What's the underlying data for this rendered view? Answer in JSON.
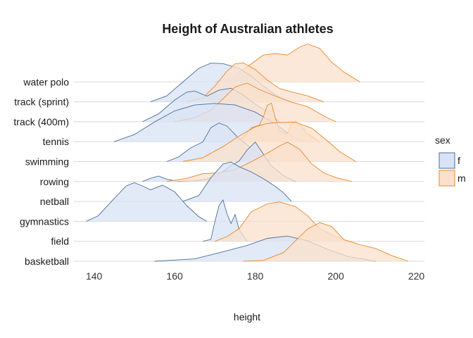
{
  "chart_data": {
    "type": "ridgeline",
    "title": "Height of Australian athletes",
    "xlabel": "height",
    "ylabel": "",
    "xlim": [
      135,
      222
    ],
    "x_ticks": [
      140,
      160,
      180,
      200,
      220
    ],
    "categories": [
      "basketball",
      "field",
      "gymnastics",
      "netball",
      "rowing",
      "swimming",
      "tennis",
      "track (400m)",
      "track (sprint)",
      "water polo"
    ],
    "legend": {
      "title": "sex",
      "position": "right",
      "entries": [
        {
          "label": "f",
          "fill": "#d8e3f6",
          "stroke": "#4b6f96"
        },
        {
          "label": "m",
          "fill": "#fbe0cb",
          "stroke": "#e8872a"
        }
      ]
    },
    "grid": "horizontal baselines only",
    "series": [
      {
        "name": "f",
        "densities": [
          {
            "category": "basketball",
            "points": [
              [
                155,
                0.0
              ],
              [
                165,
                0.06
              ],
              [
                172,
                0.24
              ],
              [
                178,
                0.4
              ],
              [
                183,
                0.58
              ],
              [
                188,
                0.64
              ],
              [
                193,
                0.52
              ],
              [
                198,
                0.3
              ],
              [
                203,
                0.12
              ],
              [
                210,
                0.0
              ]
            ]
          },
          {
            "category": "field",
            "points": [
              [
                167,
                0.0
              ],
              [
                169,
                0.05
              ],
              [
                170,
                0.5
              ],
              [
                171,
                0.9
              ],
              [
                172,
                1.05
              ],
              [
                173,
                0.7
              ],
              [
                174,
                0.45
              ],
              [
                175,
                0.68
              ],
              [
                176,
                0.3
              ],
              [
                178,
                0.0
              ]
            ]
          },
          {
            "category": "gymnastics",
            "points": [
              [
                138,
                0.0
              ],
              [
                141,
                0.14
              ],
              [
                145,
                0.58
              ],
              [
                148,
                0.9
              ],
              [
                150,
                0.98
              ],
              [
                152,
                0.9
              ],
              [
                154,
                0.8
              ],
              [
                157,
                0.92
              ],
              [
                160,
                0.75
              ],
              [
                163,
                0.4
              ],
              [
                166,
                0.12
              ],
              [
                168,
                0.0
              ]
            ]
          },
          {
            "category": "netball",
            "points": [
              [
                162,
                0.0
              ],
              [
                166,
                0.15
              ],
              [
                169,
                0.6
              ],
              [
                172,
                0.95
              ],
              [
                174,
                1.0
              ],
              [
                176,
                0.88
              ],
              [
                179,
                0.75
              ],
              [
                182,
                0.58
              ],
              [
                185,
                0.38
              ],
              [
                187,
                0.22
              ],
              [
                189,
                0.0
              ]
            ]
          },
          {
            "category": "rowing",
            "points": [
              [
                152,
                0.0
              ],
              [
                154,
                0.08
              ],
              [
                156,
                0.14
              ],
              [
                158,
                0.06
              ],
              [
                161,
                0.0
              ],
              [
                165,
                0.02
              ],
              [
                168,
                0.06
              ],
              [
                171,
                0.18
              ],
              [
                174,
                0.4
              ],
              [
                176,
                0.52
              ],
              [
                178,
                0.8
              ],
              [
                180,
                1.0
              ],
              [
                182,
                0.7
              ],
              [
                184,
                0.4
              ],
              [
                187,
                0.15
              ],
              [
                190,
                0.0
              ]
            ]
          },
          {
            "category": "swimming",
            "points": [
              [
                158,
                0.0
              ],
              [
                161,
                0.12
              ],
              [
                164,
                0.35
              ],
              [
                167,
                0.5
              ],
              [
                169,
                0.86
              ],
              [
                171,
                0.98
              ],
              [
                173,
                0.9
              ],
              [
                176,
                0.58
              ],
              [
                179,
                0.35
              ],
              [
                181,
                0.2
              ],
              [
                183,
                0.05
              ],
              [
                185,
                0.0
              ]
            ]
          },
          {
            "category": "tennis",
            "points": [
              [
                145,
                0.0
              ],
              [
                150,
                0.18
              ],
              [
                155,
                0.5
              ],
              [
                160,
                0.78
              ],
              [
                165,
                0.93
              ],
              [
                170,
                0.97
              ],
              [
                175,
                0.93
              ],
              [
                180,
                0.75
              ],
              [
                185,
                0.45
              ],
              [
                189,
                0.15
              ],
              [
                192,
                0.0
              ]
            ]
          },
          {
            "category": "track (400m)",
            "points": [
              [
                152,
                0.0
              ],
              [
                156,
                0.2
              ],
              [
                160,
                0.55
              ],
              [
                163,
                0.75
              ],
              [
                165,
                0.78
              ],
              [
                168,
                0.65
              ],
              [
                171,
                0.8
              ],
              [
                174,
                0.85
              ],
              [
                177,
                0.68
              ],
              [
                180,
                0.45
              ],
              [
                183,
                0.25
              ],
              [
                186,
                0.0
              ]
            ]
          },
          {
            "category": "track (sprint)",
            "points": [
              [
                154,
                0.0
              ],
              [
                158,
                0.15
              ],
              [
                162,
                0.5
              ],
              [
                166,
                0.85
              ],
              [
                169,
                0.98
              ],
              [
                172,
                0.97
              ],
              [
                176,
                0.85
              ],
              [
                179,
                0.65
              ],
              [
                182,
                0.4
              ],
              [
                185,
                0.18
              ],
              [
                188,
                0.0
              ]
            ]
          }
        ]
      },
      {
        "name": "m",
        "densities": [
          {
            "category": "basketball",
            "points": [
              [
                177,
                0.0
              ],
              [
                182,
                0.02
              ],
              [
                187,
                0.22
              ],
              [
                190,
                0.52
              ],
              [
                193,
                0.82
              ],
              [
                196,
                0.98
              ],
              [
                199,
                0.88
              ],
              [
                202,
                0.55
              ],
              [
                206,
                0.42
              ],
              [
                210,
                0.32
              ],
              [
                214,
                0.14
              ],
              [
                218,
                0.0
              ]
            ]
          },
          {
            "category": "field",
            "points": [
              [
                170,
                0.0
              ],
              [
                173,
                0.12
              ],
              [
                176,
                0.32
              ],
              [
                179,
                0.75
              ],
              [
                183,
                0.95
              ],
              [
                186,
                1.0
              ],
              [
                190,
                0.88
              ],
              [
                193,
                0.65
              ],
              [
                196,
                0.32
              ],
              [
                200,
                0.12
              ],
              [
                203,
                0.0
              ]
            ]
          },
          {
            "category": "rowing",
            "points": [
              [
                158,
                0.0
              ],
              [
                163,
                0.08
              ],
              [
                167,
                0.2
              ],
              [
                171,
                0.22
              ],
              [
                175,
                0.3
              ],
              [
                179,
                0.5
              ],
              [
                183,
                0.72
              ],
              [
                186,
                0.9
              ],
              [
                188,
                1.0
              ],
              [
                191,
                0.82
              ],
              [
                194,
                0.45
              ],
              [
                197,
                0.22
              ],
              [
                200,
                0.1
              ],
              [
                204,
                0.0
              ]
            ]
          },
          {
            "category": "swimming",
            "points": [
              [
                162,
                0.0
              ],
              [
                167,
                0.1
              ],
              [
                172,
                0.38
              ],
              [
                176,
                0.65
              ],
              [
                180,
                0.88
              ],
              [
                183,
                0.97
              ],
              [
                186,
                0.99
              ],
              [
                190,
                1.0
              ],
              [
                194,
                0.85
              ],
              [
                198,
                0.52
              ],
              [
                201,
                0.25
              ],
              [
                205,
                0.0
              ]
            ]
          },
          {
            "category": "tennis",
            "points": [
              [
                174,
                0.0
              ],
              [
                177,
                0.1
              ],
              [
                179,
                0.35
              ],
              [
                181,
                0.42
              ],
              [
                182,
                0.62
              ],
              [
                183,
                0.92
              ],
              [
                184,
                0.98
              ],
              [
                185,
                0.6
              ],
              [
                186,
                0.28
              ],
              [
                188,
                0.2
              ],
              [
                189,
                0.45
              ],
              [
                190,
                0.5
              ],
              [
                191,
                0.45
              ],
              [
                193,
                0.2
              ],
              [
                196,
                0.0
              ]
            ]
          },
          {
            "category": "track (400m)",
            "points": [
              [
                160,
                0.0
              ],
              [
                165,
                0.1
              ],
              [
                169,
                0.3
              ],
              [
                172,
                0.58
              ],
              [
                175,
                0.88
              ],
              [
                178,
                0.98
              ],
              [
                181,
                0.82
              ],
              [
                185,
                0.65
              ],
              [
                189,
                0.5
              ],
              [
                193,
                0.38
              ],
              [
                197,
                0.15
              ],
              [
                200,
                0.0
              ]
            ]
          },
          {
            "category": "track (sprint)",
            "points": [
              [
                163,
                0.0
              ],
              [
                167,
                0.1
              ],
              [
                170,
                0.4
              ],
              [
                173,
                0.78
              ],
              [
                175,
                0.96
              ],
              [
                177,
                0.99
              ],
              [
                180,
                0.82
              ],
              [
                183,
                0.55
              ],
              [
                186,
                0.34
              ],
              [
                189,
                0.25
              ],
              [
                193,
                0.15
              ],
              [
                197,
                0.0
              ]
            ]
          },
          {
            "category": "water polo",
            "points": [
              [
                170,
                0.0
              ],
              [
                174,
                0.1
              ],
              [
                178,
                0.38
              ],
              [
                182,
                0.68
              ],
              [
                185,
                0.72
              ],
              [
                188,
                0.68
              ],
              [
                191,
                0.88
              ],
              [
                193,
                0.96
              ],
              [
                196,
                0.85
              ],
              [
                199,
                0.5
              ],
              [
                202,
                0.25
              ],
              [
                206,
                0.0
              ]
            ]
          }
        ]
      }
    ]
  }
}
